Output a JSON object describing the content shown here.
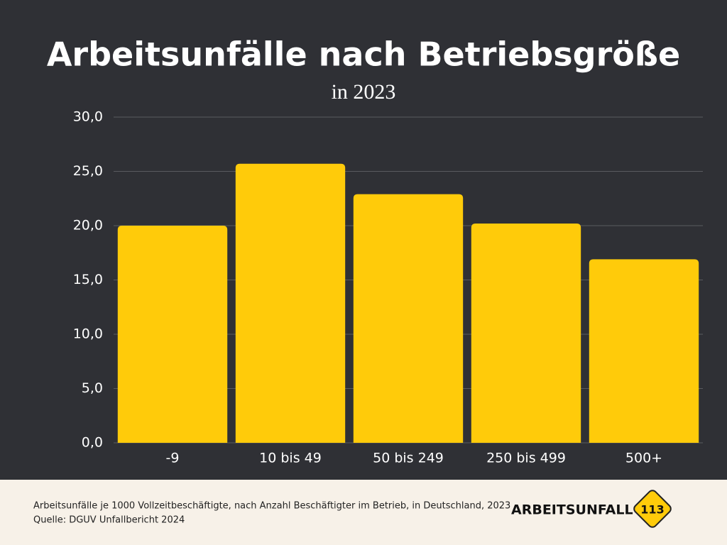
{
  "chart_data": {
    "type": "bar",
    "title": "Arbeitsunfälle nach Betriebsgröße",
    "subtitle": "in 2023",
    "categories": [
      "-9",
      "10 bis 49",
      "50 bis 249",
      "250 bis 499",
      "500+"
    ],
    "values": [
      20.0,
      25.7,
      22.9,
      20.2,
      16.9
    ],
    "color": "#ffcb0a",
    "ylim": [
      0,
      30
    ],
    "yticks": [
      {
        "value": 0,
        "label": "0,0"
      },
      {
        "value": 5,
        "label": "5,0"
      },
      {
        "value": 10,
        "label": "10,0"
      },
      {
        "value": 15,
        "label": "15,0"
      },
      {
        "value": 20,
        "label": "20,0"
      },
      {
        "value": 25,
        "label": "25,0"
      },
      {
        "value": 30,
        "label": "30,0"
      }
    ],
    "grid": true
  },
  "footer": {
    "note": "Arbeitsunfälle je 1000 Vollzeitbeschäftigte, nach Anzahl Beschäftigter im Betrieb, in Deutschland, 2023",
    "source": "Quelle: DGUV Unfallbericht 2024",
    "brand": "ARBEITSUNFALL",
    "badge": "113"
  }
}
